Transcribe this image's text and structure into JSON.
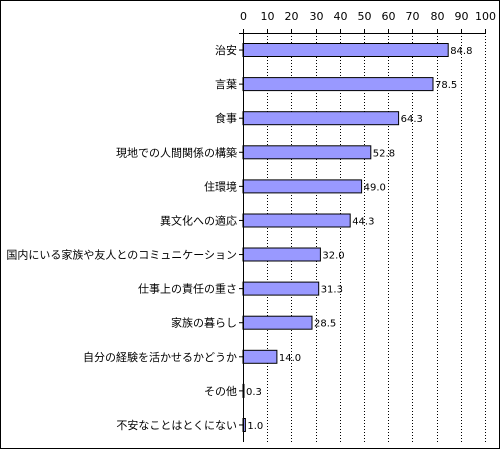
{
  "colors": {
    "bar_fill": "#9999ff",
    "bar_stroke": "#000000",
    "grid": "#000000",
    "background": "#ffffff"
  },
  "chart_data": {
    "type": "bar",
    "orientation": "horizontal",
    "title": "",
    "xlabel": "",
    "ylabel": "",
    "xlim": [
      0,
      100
    ],
    "x_ticks": [
      0,
      10,
      20,
      30,
      40,
      50,
      60,
      70,
      80,
      90,
      100
    ],
    "x_axis_position": "top",
    "grid": "vertical dotted",
    "legend": "none",
    "categories": [
      "治安",
      "言葉",
      "食事",
      "現地での人間関係の構築",
      "住環境",
      "異文化への適応",
      "国内にいる家族や友人とのコミュニケーション",
      "仕事上の責任の重さ",
      "家族の暮らし",
      "自分の経験を活かせるかどうか",
      "その他",
      "不安なことはとくにない"
    ],
    "values": [
      84.8,
      78.5,
      64.3,
      52.8,
      49.0,
      44.3,
      32.0,
      31.3,
      28.5,
      14.0,
      0.3,
      1.0
    ],
    "value_labels": [
      "84.8",
      "78.5",
      "64.3",
      "52.8",
      "49.0",
      "44.3",
      "32.0",
      "31.3",
      "28.5",
      "14.0",
      "0.3",
      "1.0"
    ]
  }
}
